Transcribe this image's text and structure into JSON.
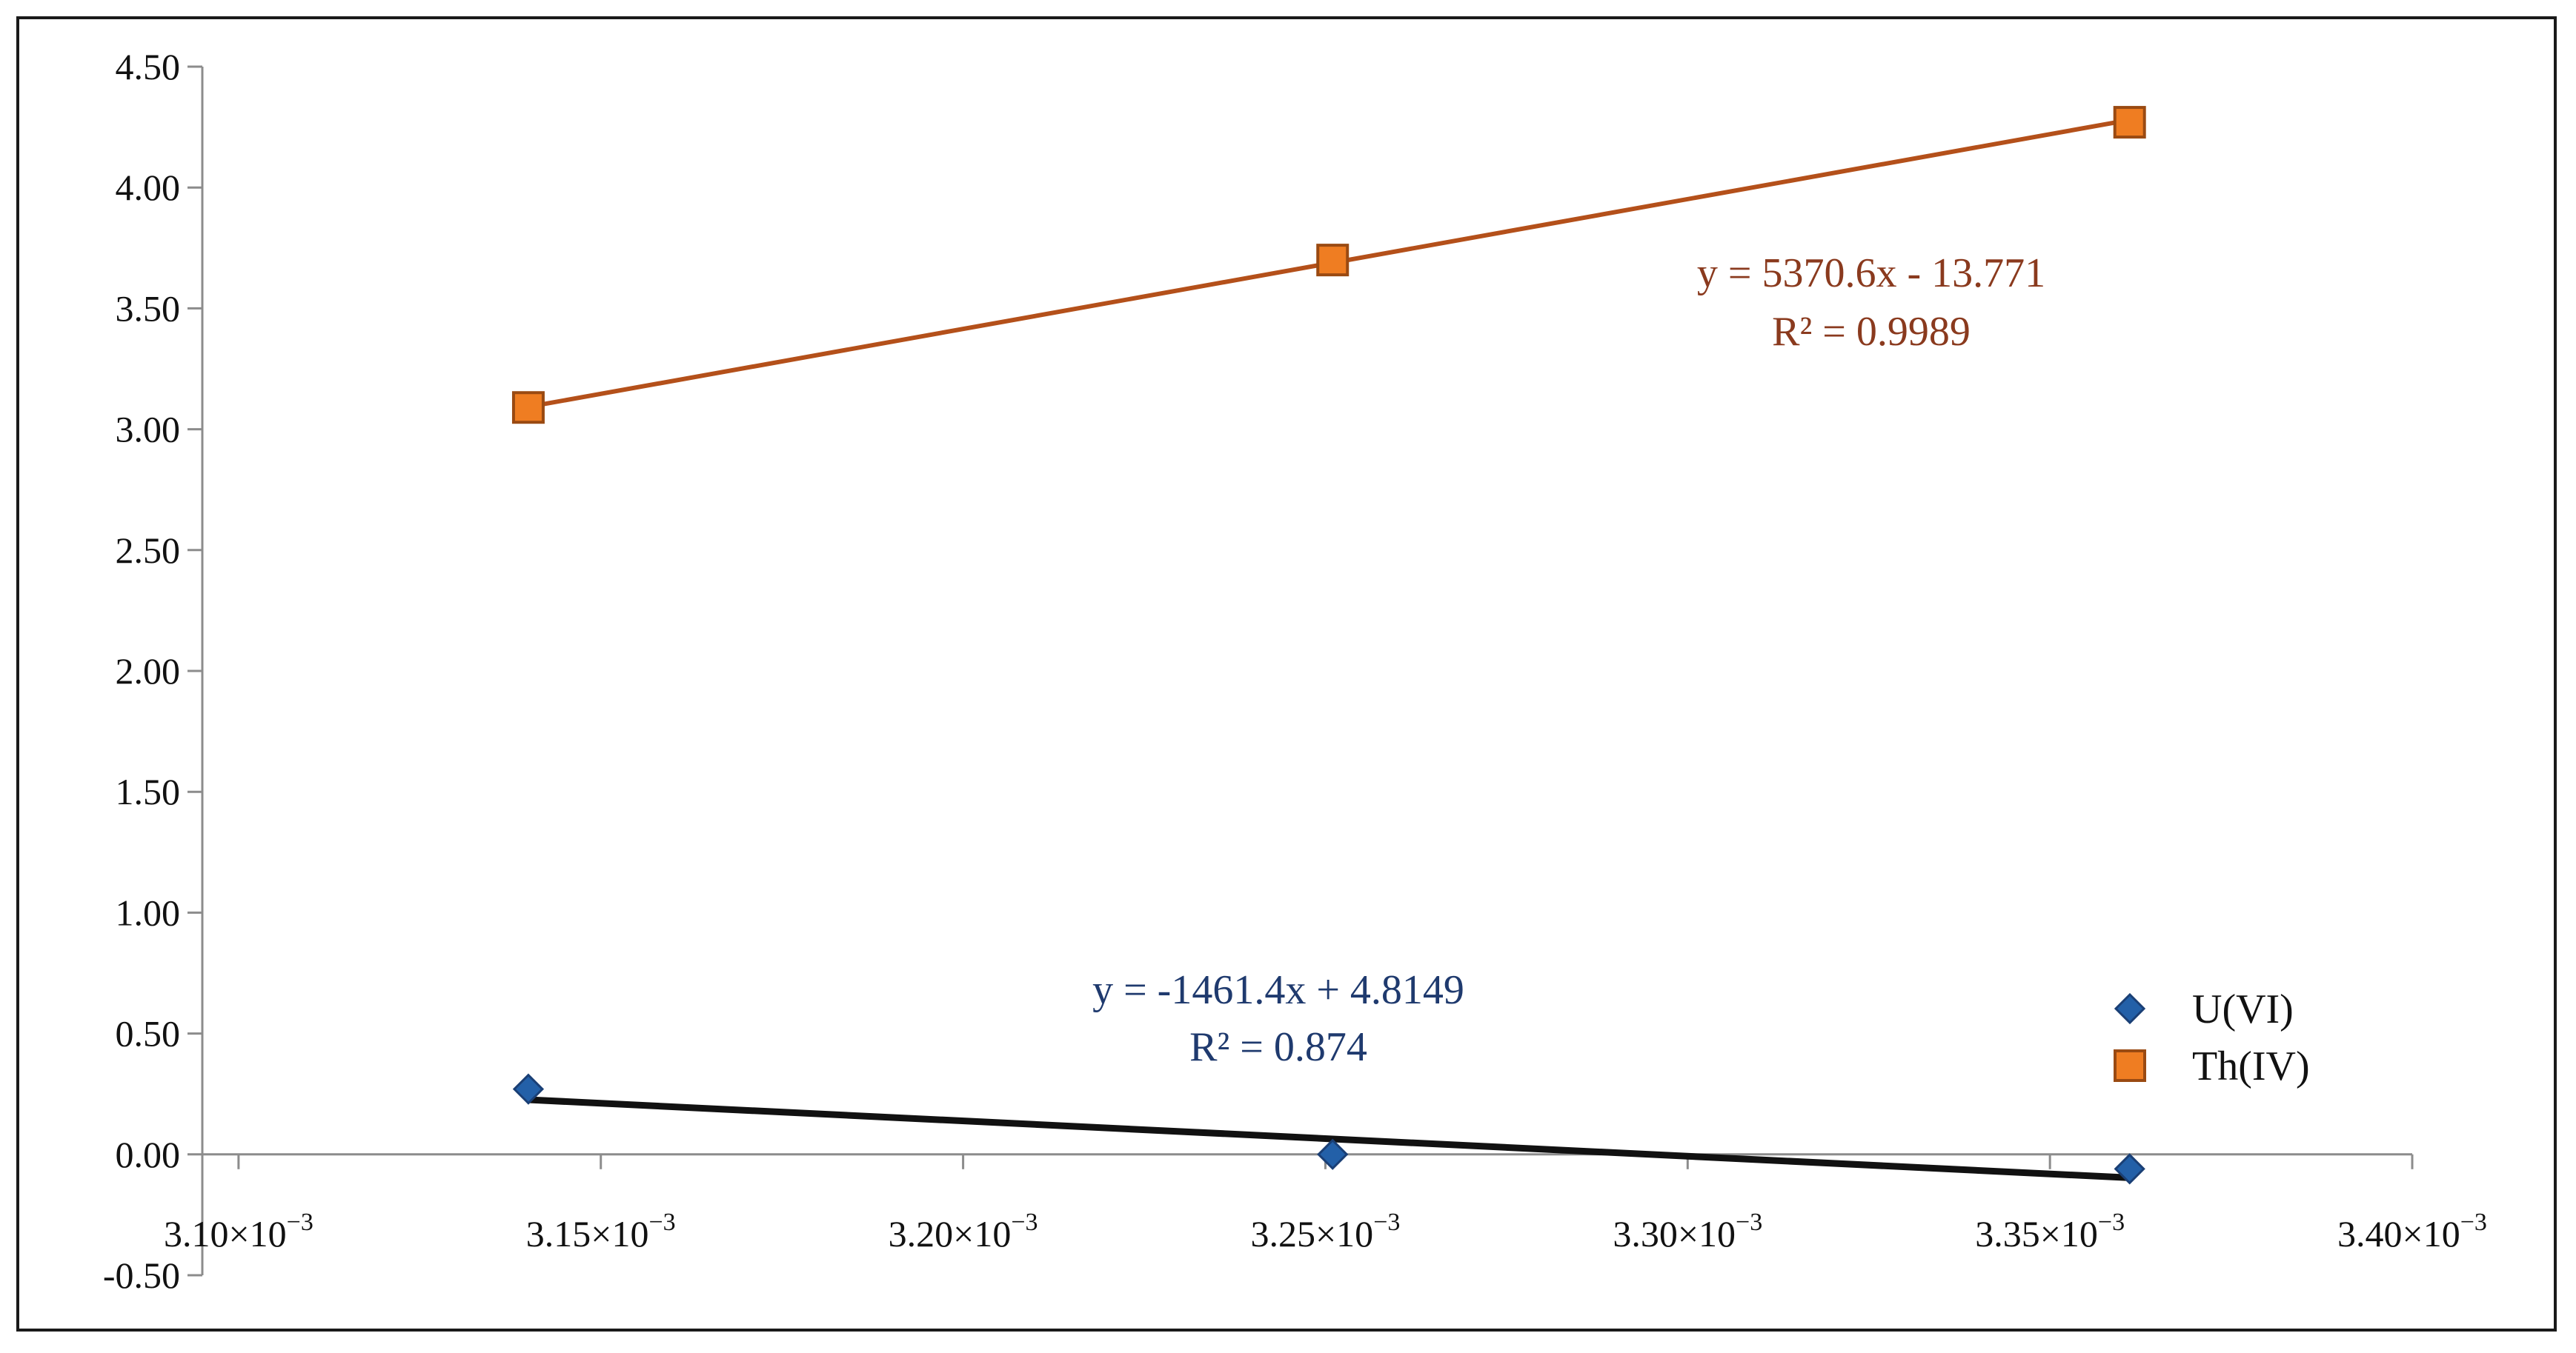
{
  "chart_data": {
    "type": "scatter",
    "title": "",
    "xlabel": "",
    "ylabel": "",
    "xlim": [
      0.003095,
      0.0034
    ],
    "ylim": [
      -0.5,
      4.5
    ],
    "x_ticks": [
      {
        "value": 0.0031,
        "mantissa": "3.10",
        "exp": "−3"
      },
      {
        "value": 0.00315,
        "mantissa": "3.15",
        "exp": "−3"
      },
      {
        "value": 0.0032,
        "mantissa": "3.20",
        "exp": "−3"
      },
      {
        "value": 0.00325,
        "mantissa": "3.25",
        "exp": "−3"
      },
      {
        "value": 0.0033,
        "mantissa": "3.30",
        "exp": "−3"
      },
      {
        "value": 0.00335,
        "mantissa": "3.35",
        "exp": "−3"
      },
      {
        "value": 0.0034,
        "mantissa": "3.40",
        "exp": "−3"
      }
    ],
    "x_tick_times": "×10",
    "y_ticks": [
      "4.50",
      "4.00",
      "3.50",
      "3.00",
      "2.50",
      "2.00",
      "1.50",
      "1.00",
      "0.50",
      "0.00",
      "-0.50"
    ],
    "y_tick_values": [
      4.5,
      4.0,
      3.5,
      3.0,
      2.5,
      2.0,
      1.5,
      1.0,
      0.5,
      0.0,
      -0.5
    ],
    "series": [
      {
        "name": "U(VI)",
        "marker": "diamond",
        "color": "#2360a8",
        "trend_color": "#111111",
        "x": [
          0.00314,
          0.003251,
          0.003361
        ],
        "y": [
          0.27,
          0.0,
          -0.06
        ],
        "trend": {
          "slope": -1461.4,
          "intercept": 4.8149
        },
        "equation": "y = -1461.4x + 4.8149",
        "r2": "R² = 0.874",
        "eq_color": "#1f3a6e"
      },
      {
        "name": "Th(IV)",
        "marker": "square",
        "color": "#ef7d22",
        "trend_color": "#b4501a",
        "x": [
          0.00314,
          0.003251,
          0.003361
        ],
        "y": [
          3.09,
          3.7,
          4.27
        ],
        "trend": {
          "slope": 5370.6,
          "intercept": -13.771
        },
        "equation": "y = 5370.6x - 13.771",
        "r2": "R² = 0.9989",
        "eq_color": "#8a3a1e"
      }
    ],
    "legend": "right-bottom"
  }
}
